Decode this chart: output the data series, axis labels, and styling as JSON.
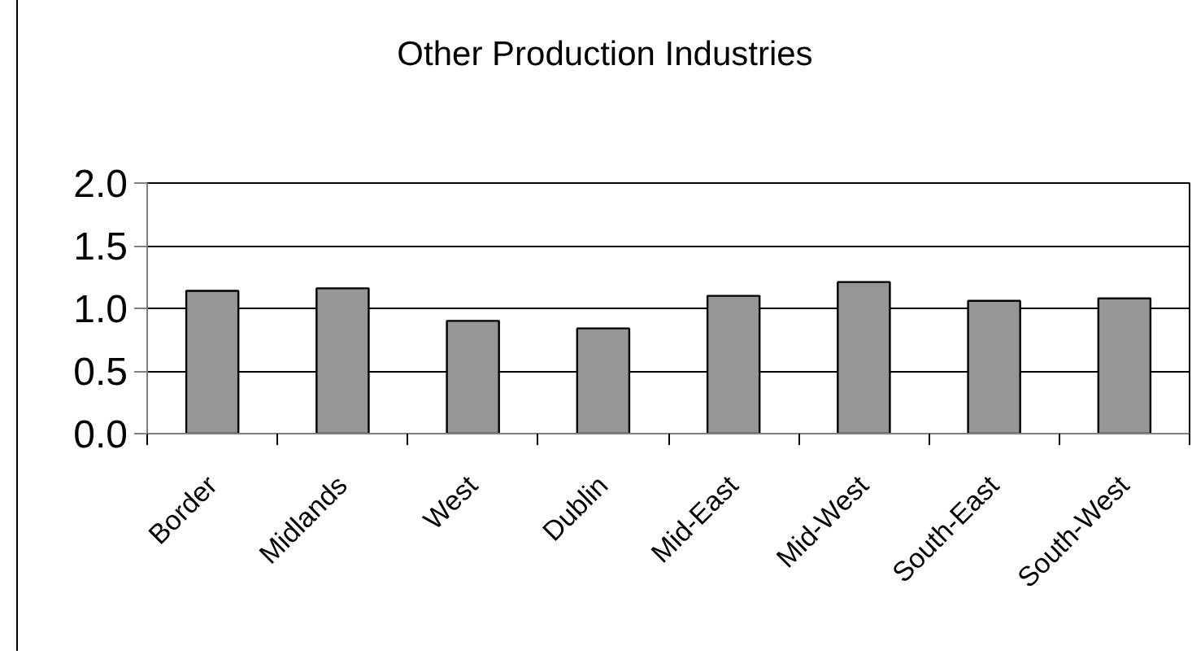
{
  "chart_data": {
    "type": "bar",
    "title": "Other Production Industries",
    "categories": [
      "Border",
      "Midlands",
      "West",
      "Dublin",
      "Mid-East",
      "Mid-West",
      "South-East",
      "South-West"
    ],
    "values": [
      1.14,
      1.16,
      0.9,
      0.84,
      1.1,
      1.21,
      1.06,
      1.08
    ],
    "color": "#969696",
    "ylim": [
      0,
      2
    ],
    "yticks": [
      {
        "value": 0,
        "label": "0.0"
      },
      0.5,
      {
        "value": 1,
        "label": "1.0"
      },
      1.5,
      {
        "value": 2,
        "label": "2.0"
      }
    ],
    "grid": "y"
  }
}
